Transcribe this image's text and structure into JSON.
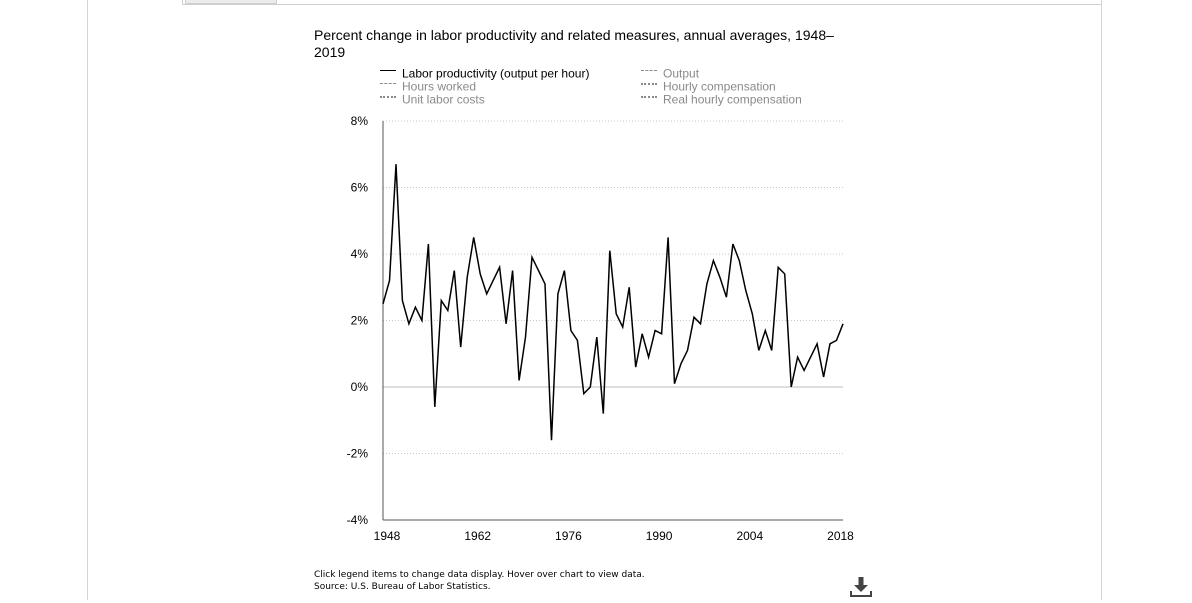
{
  "icons": {
    "download": "download-icon"
  },
  "footer": {
    "note": "Click legend items to change data display. Hover over chart to view data.",
    "source": "Source: U.S. Bureau of Labor Statistics."
  },
  "chart_data": {
    "type": "line",
    "title": "Percent change in labor productivity and related measures, annual averages, 1948–2019",
    "xlabel": "",
    "ylabel": "",
    "legend": [
      {
        "name": "Labor productivity (output per hour)",
        "style": "solid",
        "active": true,
        "color": "#000000"
      },
      {
        "name": "Output",
        "style": "dashed",
        "active": false,
        "color": "#8a8a8a"
      },
      {
        "name": "Hours worked",
        "style": "dashed",
        "active": false,
        "color": "#8a8a8a"
      },
      {
        "name": "Hourly compensation",
        "style": "dotted",
        "active": false,
        "color": "#8a8a8a"
      },
      {
        "name": "Unit labor costs",
        "style": "dotted",
        "active": false,
        "color": "#8a8a8a"
      },
      {
        "name": "Real hourly compensation",
        "style": "dotted",
        "active": false,
        "color": "#8a8a8a"
      }
    ],
    "legend_placement": "top",
    "grid": true,
    "xlim": [
      1948,
      2019
    ],
    "ylim": [
      -4,
      8
    ],
    "x_ticks": [
      1948,
      1962,
      1976,
      1990,
      2004,
      2018
    ],
    "x_tick_labels": [
      "1948",
      "1962",
      "1976",
      "1990",
      "2004",
      "2018"
    ],
    "y_ticks": [
      -4,
      -2,
      0,
      2,
      4,
      6,
      8
    ],
    "y_tick_labels": [
      "-4%",
      "-2%",
      "0%",
      "2%",
      "4%",
      "6%",
      "8%"
    ],
    "series": [
      {
        "name": "Labor productivity (output per hour)",
        "x": [
          1948,
          1949,
          1950,
          1951,
          1952,
          1953,
          1954,
          1955,
          1956,
          1957,
          1958,
          1959,
          1960,
          1961,
          1962,
          1963,
          1964,
          1965,
          1966,
          1967,
          1968,
          1969,
          1970,
          1971,
          1972,
          1973,
          1974,
          1975,
          1976,
          1977,
          1978,
          1979,
          1980,
          1981,
          1982,
          1983,
          1984,
          1985,
          1986,
          1987,
          1988,
          1989,
          1990,
          1991,
          1992,
          1993,
          1994,
          1995,
          1996,
          1997,
          1998,
          1999,
          2000,
          2001,
          2002,
          2003,
          2004,
          2005,
          2006,
          2007,
          2008,
          2009,
          2010,
          2011,
          2012,
          2013,
          2014,
          2015,
          2016,
          2017,
          2018,
          2019
        ],
        "values": [
          2.5,
          3.2,
          6.7,
          2.6,
          1.9,
          2.4,
          2.0,
          4.3,
          -0.6,
          2.6,
          2.3,
          3.5,
          1.2,
          3.3,
          4.5,
          3.4,
          2.8,
          3.2,
          3.6,
          1.9,
          3.5,
          0.2,
          1.5,
          3.9,
          3.5,
          3.1,
          -1.6,
          2.8,
          3.5,
          1.7,
          1.4,
          -0.2,
          0.0,
          1.5,
          -0.8,
          4.1,
          2.2,
          1.8,
          3.0,
          0.6,
          1.6,
          0.9,
          1.7,
          1.6,
          4.5,
          0.1,
          0.7,
          1.1,
          2.1,
          1.9,
          3.1,
          3.8,
          3.3,
          2.7,
          4.3,
          3.8,
          2.9,
          2.2,
          1.1,
          1.7,
          1.1,
          3.6,
          3.4,
          0.0,
          0.9,
          0.5,
          0.9,
          1.3,
          0.3,
          1.3,
          1.4,
          1.9
        ]
      }
    ]
  }
}
